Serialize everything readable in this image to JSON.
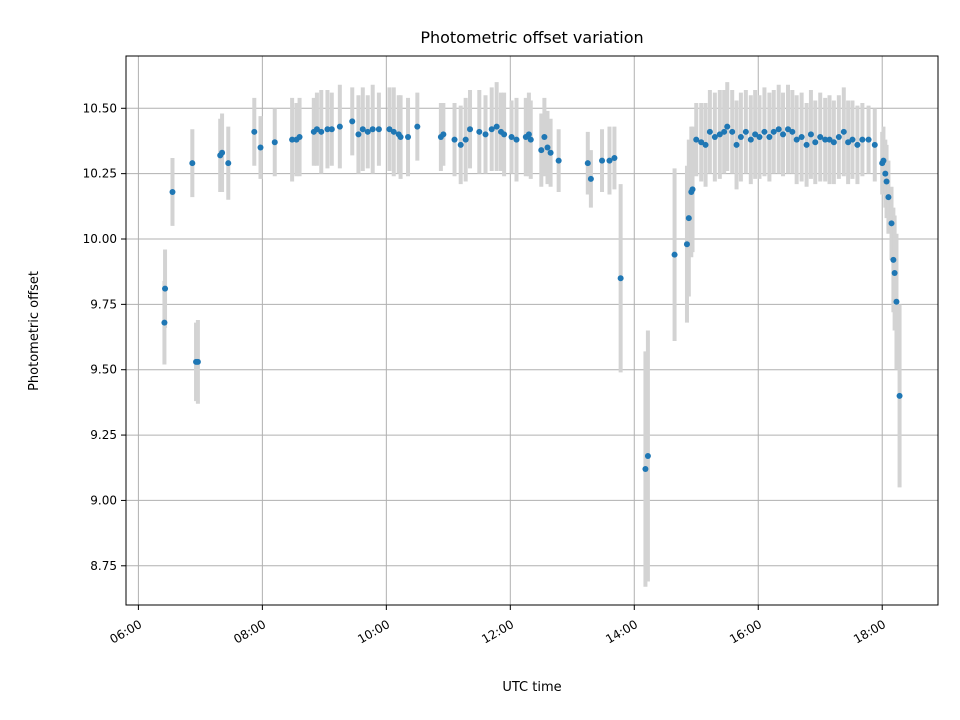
{
  "chart_data": {
    "type": "scatter",
    "title": "Photometric offset variation",
    "xlabel": "UTC time",
    "ylabel": "Photometric offset",
    "x_unit": "hour",
    "x_ticks": [
      6,
      8,
      10,
      12,
      14,
      16,
      18
    ],
    "x_tick_labels": [
      "06:00",
      "08:00",
      "10:00",
      "12:00",
      "14:00",
      "16:00",
      "18:00"
    ],
    "y_ticks": [
      8.75,
      9.0,
      9.25,
      9.5,
      9.75,
      10.0,
      10.25,
      10.5
    ],
    "y_tick_labels": [
      "8.75",
      "9.00",
      "9.25",
      "9.50",
      "9.75",
      "10.00",
      "10.25",
      "10.50"
    ],
    "xlim": [
      5.8,
      18.9
    ],
    "ylim": [
      8.6,
      10.7
    ],
    "grid": true,
    "colors": {
      "points": "#1f77b4",
      "errorbars": "#d3d3d3"
    },
    "series": [
      {
        "name": "",
        "points": [
          [
            6.42,
            9.68,
            0.16
          ],
          [
            6.43,
            9.81,
            0.15
          ],
          [
            6.55,
            10.18,
            0.13
          ],
          [
            6.87,
            10.29,
            0.13
          ],
          [
            6.93,
            9.53,
            0.15
          ],
          [
            6.96,
            9.53,
            0.16
          ],
          [
            7.32,
            10.32,
            0.14
          ],
          [
            7.35,
            10.33,
            0.15
          ],
          [
            7.45,
            10.29,
            0.14
          ],
          [
            7.87,
            10.41,
            0.13
          ],
          [
            7.97,
            10.35,
            0.12
          ],
          [
            8.2,
            10.37,
            0.13
          ],
          [
            8.48,
            10.38,
            0.16
          ],
          [
            8.55,
            10.38,
            0.14
          ],
          [
            8.6,
            10.39,
            0.15
          ],
          [
            8.83,
            10.41,
            0.13
          ],
          [
            8.88,
            10.42,
            0.14
          ],
          [
            8.95,
            10.41,
            0.16
          ],
          [
            9.05,
            10.42,
            0.15
          ],
          [
            9.12,
            10.42,
            0.14
          ],
          [
            9.25,
            10.43,
            0.16
          ],
          [
            9.45,
            10.45,
            0.13
          ],
          [
            9.55,
            10.4,
            0.15
          ],
          [
            9.62,
            10.42,
            0.16
          ],
          [
            9.7,
            10.41,
            0.14
          ],
          [
            9.78,
            10.42,
            0.17
          ],
          [
            9.88,
            10.42,
            0.14
          ],
          [
            10.05,
            10.42,
            0.16
          ],
          [
            10.12,
            10.41,
            0.17
          ],
          [
            10.2,
            10.4,
            0.15
          ],
          [
            10.23,
            10.39,
            0.16
          ],
          [
            10.35,
            10.39,
            0.15
          ],
          [
            10.5,
            10.43,
            0.13
          ],
          [
            10.88,
            10.39,
            0.13
          ],
          [
            10.92,
            10.4,
            0.12
          ],
          [
            11.1,
            10.38,
            0.14
          ],
          [
            11.2,
            10.36,
            0.15
          ],
          [
            11.28,
            10.38,
            0.16
          ],
          [
            11.35,
            10.42,
            0.15
          ],
          [
            11.5,
            10.41,
            0.16
          ],
          [
            11.6,
            10.4,
            0.15
          ],
          [
            11.7,
            10.42,
            0.16
          ],
          [
            11.78,
            10.43,
            0.17
          ],
          [
            11.85,
            10.41,
            0.15
          ],
          [
            11.9,
            10.4,
            0.16
          ],
          [
            12.02,
            10.39,
            0.14
          ],
          [
            12.1,
            10.38,
            0.16
          ],
          [
            12.25,
            10.39,
            0.15
          ],
          [
            12.3,
            10.4,
            0.16
          ],
          [
            12.33,
            10.38,
            0.15
          ],
          [
            12.5,
            10.34,
            0.14
          ],
          [
            12.55,
            10.39,
            0.15
          ],
          [
            12.6,
            10.35,
            0.14
          ],
          [
            12.65,
            10.33,
            0.13
          ],
          [
            12.78,
            10.3,
            0.12
          ],
          [
            13.25,
            10.29,
            0.12
          ],
          [
            13.3,
            10.23,
            0.11
          ],
          [
            13.48,
            10.3,
            0.12
          ],
          [
            13.6,
            10.3,
            0.13
          ],
          [
            13.68,
            10.31,
            0.12
          ],
          [
            13.78,
            9.85,
            0.36
          ],
          [
            14.18,
            9.12,
            0.45
          ],
          [
            14.22,
            9.17,
            0.48
          ],
          [
            14.65,
            9.94,
            0.33
          ],
          [
            14.85,
            9.98,
            0.3
          ],
          [
            14.88,
            10.08,
            0.3
          ],
          [
            14.92,
            10.18,
            0.25
          ],
          [
            14.94,
            10.19,
            0.24
          ],
          [
            15.0,
            10.38,
            0.14
          ],
          [
            15.08,
            10.37,
            0.15
          ],
          [
            15.15,
            10.36,
            0.16
          ],
          [
            15.22,
            10.41,
            0.16
          ],
          [
            15.3,
            10.39,
            0.17
          ],
          [
            15.38,
            10.4,
            0.17
          ],
          [
            15.45,
            10.41,
            0.16
          ],
          [
            15.5,
            10.43,
            0.17
          ],
          [
            15.58,
            10.41,
            0.16
          ],
          [
            15.65,
            10.36,
            0.17
          ],
          [
            15.72,
            10.39,
            0.17
          ],
          [
            15.8,
            10.41,
            0.16
          ],
          [
            15.88,
            10.38,
            0.17
          ],
          [
            15.95,
            10.4,
            0.17
          ],
          [
            16.02,
            10.39,
            0.16
          ],
          [
            16.1,
            10.41,
            0.17
          ],
          [
            16.18,
            10.39,
            0.17
          ],
          [
            16.25,
            10.41,
            0.16
          ],
          [
            16.33,
            10.42,
            0.17
          ],
          [
            16.4,
            10.4,
            0.16
          ],
          [
            16.48,
            10.42,
            0.17
          ],
          [
            16.55,
            10.41,
            0.16
          ],
          [
            16.62,
            10.38,
            0.17
          ],
          [
            16.7,
            10.39,
            0.17
          ],
          [
            16.78,
            10.36,
            0.16
          ],
          [
            16.85,
            10.4,
            0.17
          ],
          [
            16.92,
            10.37,
            0.16
          ],
          [
            17.0,
            10.39,
            0.17
          ],
          [
            17.08,
            10.38,
            0.16
          ],
          [
            17.15,
            10.38,
            0.17
          ],
          [
            17.22,
            10.37,
            0.16
          ],
          [
            17.3,
            10.39,
            0.16
          ],
          [
            17.38,
            10.41,
            0.17
          ],
          [
            17.45,
            10.37,
            0.16
          ],
          [
            17.52,
            10.38,
            0.15
          ],
          [
            17.6,
            10.36,
            0.15
          ],
          [
            17.68,
            10.38,
            0.14
          ],
          [
            17.78,
            10.38,
            0.13
          ],
          [
            17.88,
            10.36,
            0.14
          ],
          [
            18.0,
            10.29,
            0.12
          ],
          [
            18.02,
            10.3,
            0.13
          ],
          [
            18.05,
            10.25,
            0.13
          ],
          [
            18.07,
            10.22,
            0.14
          ],
          [
            18.1,
            10.16,
            0.14
          ],
          [
            18.15,
            10.06,
            0.14
          ],
          [
            18.18,
            9.92,
            0.2
          ],
          [
            18.2,
            9.87,
            0.22
          ],
          [
            18.23,
            9.76,
            0.26
          ],
          [
            18.28,
            9.4,
            0.35
          ]
        ]
      }
    ]
  }
}
